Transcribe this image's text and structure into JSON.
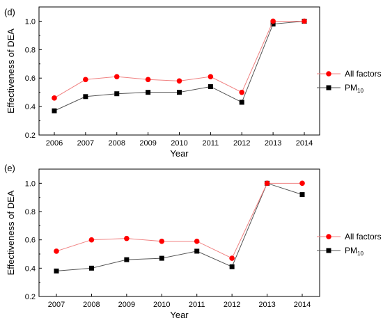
{
  "chart_data": [
    {
      "type": "line",
      "panel_label": "(d)",
      "xlabel": "Year",
      "ylabel": "Effectiveness of DEA",
      "categories": [
        "2006",
        "2007",
        "2008",
        "2009",
        "2010",
        "2011",
        "2012",
        "2013",
        "2014"
      ],
      "ylim": [
        0.2,
        1.1
      ],
      "yticks": [
        "0.2",
        "0.4",
        "0.6",
        "0.8",
        "1.0"
      ],
      "legend_position": "right",
      "grid": false,
      "series": [
        {
          "name": "All factors",
          "color": "#ff0000",
          "marker": "circle",
          "values": [
            0.46,
            0.59,
            0.61,
            0.59,
            0.58,
            0.61,
            0.5,
            1.0,
            1.0
          ]
        },
        {
          "name": "PM",
          "name_subscript": "10",
          "color": "#000000",
          "marker": "square",
          "values": [
            0.37,
            0.47,
            0.49,
            0.5,
            0.5,
            0.54,
            0.43,
            0.98,
            1.0
          ]
        }
      ]
    },
    {
      "type": "line",
      "panel_label": "(e)",
      "xlabel": "Year",
      "ylabel": "Effectiveness of DEA",
      "categories": [
        "2007",
        "2008",
        "2009",
        "2010",
        "2011",
        "2012",
        "2013",
        "2014"
      ],
      "ylim": [
        0.2,
        1.1
      ],
      "yticks": [
        "0.2",
        "0.4",
        "0.6",
        "0.8",
        "1.0"
      ],
      "legend_position": "right",
      "grid": false,
      "series": [
        {
          "name": "All factors",
          "color": "#ff0000",
          "marker": "circle",
          "values": [
            0.52,
            0.6,
            0.61,
            0.59,
            0.59,
            0.47,
            1.0,
            1.0
          ]
        },
        {
          "name": "PM",
          "name_subscript": "10",
          "color": "#000000",
          "marker": "square",
          "values": [
            0.38,
            0.4,
            0.46,
            0.47,
            0.52,
            0.41,
            1.0,
            0.92
          ]
        }
      ]
    }
  ]
}
